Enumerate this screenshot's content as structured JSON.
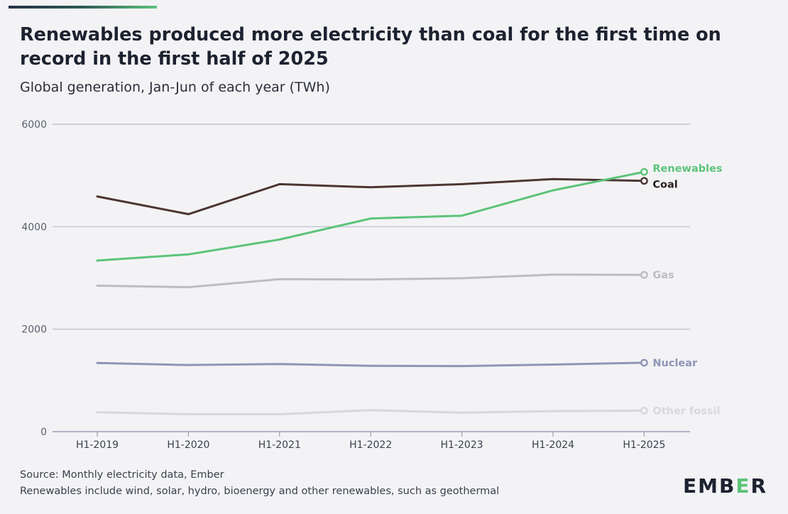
{
  "header": {
    "title": "Renewables produced more electricity than coal for the first time on record in the first half of 2025",
    "subtitle": "Global generation, Jan-Jun of each year (TWh)"
  },
  "footer": {
    "source": "Source: Monthly electricity data, Ember",
    "note": "Renewables include wind, solar, hydro, bioenergy and other renewables, such as geothermal"
  },
  "logo": {
    "pre": "EMB",
    "accent": "E",
    "post": "R"
  },
  "chart_data": {
    "type": "line",
    "categories": [
      "H1-2019",
      "H1-2020",
      "H1-2021",
      "H1-2022",
      "H1-2023",
      "H1-2024",
      "H1-2025"
    ],
    "ylim": [
      0,
      6000
    ],
    "yticks": [
      0,
      2000,
      4000,
      6000
    ],
    "grid": true,
    "legend": "inline-right",
    "series": [
      {
        "name": "Other fossil",
        "color": "#d8d8dc",
        "values": [
          380,
          340,
          340,
          420,
          370,
          400,
          410
        ]
      },
      {
        "name": "Nuclear",
        "color": "#8e95b6",
        "values": [
          1340,
          1300,
          1320,
          1285,
          1280,
          1310,
          1345
        ]
      },
      {
        "name": "Gas",
        "color": "#bdbdc1",
        "values": [
          2850,
          2820,
          2975,
          2970,
          2995,
          3065,
          3060
        ]
      },
      {
        "name": "Coal",
        "color": "#4b3631",
        "values": [
          4590,
          4245,
          4830,
          4770,
          4830,
          4930,
          4895
        ]
      },
      {
        "name": "Renewables",
        "color": "#5cc47a",
        "values": [
          3340,
          3460,
          3750,
          4160,
          4215,
          4710,
          5070
        ]
      }
    ]
  }
}
